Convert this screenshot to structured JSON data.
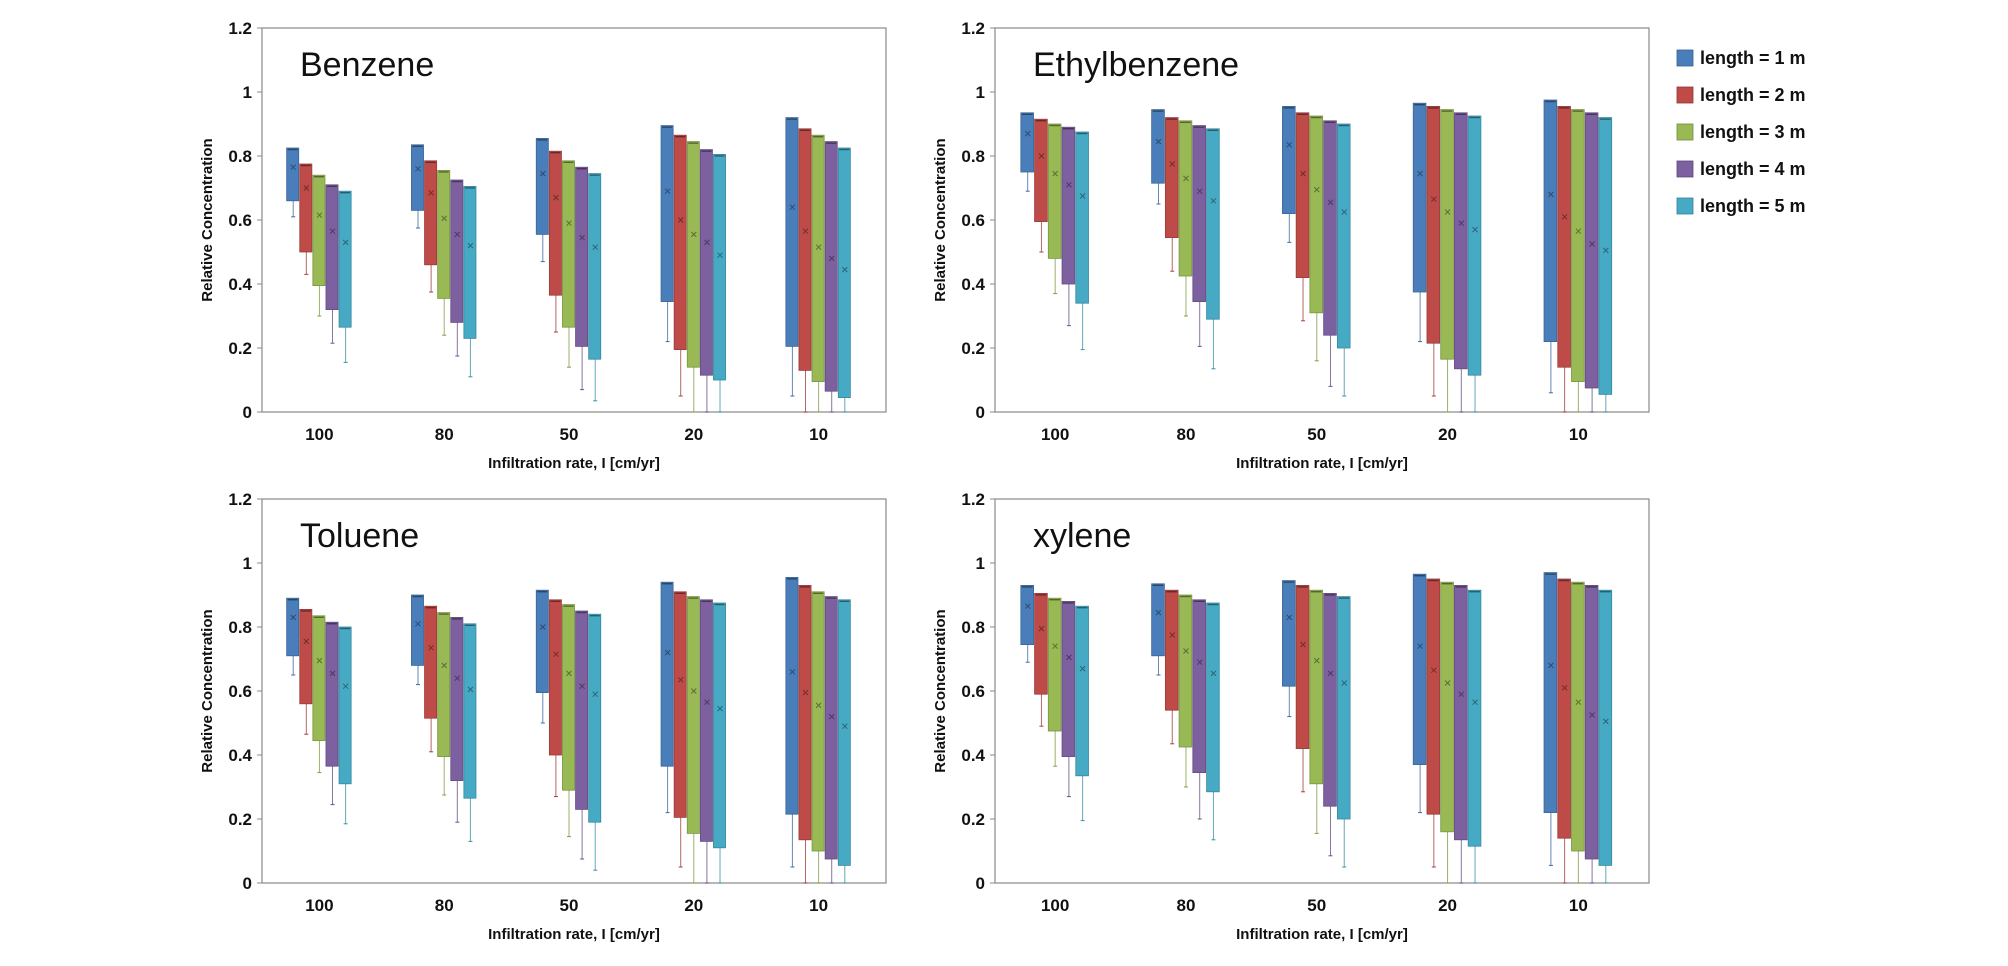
{
  "chart_data": [
    {
      "type": "box",
      "title": "Benzene",
      "xlabel": "Infiltration rate, I [cm/yr]",
      "ylabel": "Relative Concentration",
      "ylim": [
        0,
        1.2
      ],
      "yticks": [
        "0",
        "0.2",
        "0.4",
        "0.6",
        "0.8",
        "1",
        "1.2"
      ],
      "categories": [
        "100",
        "80",
        "50",
        "20",
        "10"
      ],
      "series": [
        {
          "name": "length = 1 m",
          "boxes": [
            [
              0.66,
              0.825,
              0.765,
              0.61
            ],
            [
              0.63,
              0.835,
              0.76,
              0.575
            ],
            [
              0.555,
              0.855,
              0.745,
              0.47
            ],
            [
              0.345,
              0.895,
              0.69,
              0.22
            ],
            [
              0.205,
              0.92,
              0.64,
              0.05
            ]
          ]
        },
        {
          "name": "length = 2 m",
          "boxes": [
            [
              0.5,
              0.775,
              0.7,
              0.43
            ],
            [
              0.46,
              0.785,
              0.685,
              0.375
            ],
            [
              0.365,
              0.815,
              0.67,
              0.25
            ],
            [
              0.195,
              0.865,
              0.6,
              0.05
            ],
            [
              0.13,
              0.885,
              0.565,
              0.0
            ]
          ]
        },
        {
          "name": "length = 3 m",
          "boxes": [
            [
              0.395,
              0.74,
              0.615,
              0.3
            ],
            [
              0.355,
              0.755,
              0.605,
              0.24
            ],
            [
              0.265,
              0.785,
              0.59,
              0.14
            ],
            [
              0.14,
              0.845,
              0.555,
              0.0
            ],
            [
              0.095,
              0.865,
              0.515,
              0.0
            ]
          ]
        },
        {
          "name": "length = 4 m",
          "boxes": [
            [
              0.32,
              0.71,
              0.565,
              0.215
            ],
            [
              0.28,
              0.725,
              0.555,
              0.175
            ],
            [
              0.205,
              0.765,
              0.545,
              0.07
            ],
            [
              0.115,
              0.82,
              0.53,
              0.0
            ],
            [
              0.065,
              0.845,
              0.48,
              0.0
            ]
          ]
        },
        {
          "name": "length = 5 m",
          "boxes": [
            [
              0.265,
              0.69,
              0.53,
              0.155
            ],
            [
              0.23,
              0.705,
              0.52,
              0.11
            ],
            [
              0.165,
              0.745,
              0.515,
              0.035
            ],
            [
              0.1,
              0.805,
              0.49,
              0.0
            ],
            [
              0.045,
              0.825,
              0.445,
              0.0
            ]
          ]
        }
      ]
    },
    {
      "type": "box",
      "title": "Ethylbenzene",
      "xlabel": "Infiltration rate, I [cm/yr]",
      "ylabel": "Relative Concentration",
      "ylim": [
        0,
        1.2
      ],
      "yticks": [
        "0",
        "0.2",
        "0.4",
        "0.6",
        "0.8",
        "1",
        "1.2"
      ],
      "categories": [
        "100",
        "80",
        "50",
        "20",
        "10"
      ],
      "series": [
        {
          "name": "length = 1 m",
          "boxes": [
            [
              0.75,
              0.935,
              0.87,
              0.69
            ],
            [
              0.715,
              0.945,
              0.845,
              0.65
            ],
            [
              0.62,
              0.955,
              0.835,
              0.53
            ],
            [
              0.375,
              0.965,
              0.745,
              0.22
            ],
            [
              0.22,
              0.975,
              0.68,
              0.06
            ]
          ]
        },
        {
          "name": "length = 2 m",
          "boxes": [
            [
              0.595,
              0.915,
              0.8,
              0.5
            ],
            [
              0.545,
              0.92,
              0.775,
              0.44
            ],
            [
              0.42,
              0.935,
              0.745,
              0.285
            ],
            [
              0.215,
              0.955,
              0.665,
              0.05
            ],
            [
              0.14,
              0.955,
              0.61,
              0.0
            ]
          ]
        },
        {
          "name": "length = 3 m",
          "boxes": [
            [
              0.48,
              0.9,
              0.745,
              0.37
            ],
            [
              0.425,
              0.91,
              0.73,
              0.3
            ],
            [
              0.31,
              0.925,
              0.695,
              0.16
            ],
            [
              0.165,
              0.945,
              0.625,
              0.0
            ],
            [
              0.095,
              0.945,
              0.565,
              0.0
            ]
          ]
        },
        {
          "name": "length = 4 m",
          "boxes": [
            [
              0.4,
              0.89,
              0.71,
              0.27
            ],
            [
              0.345,
              0.895,
              0.69,
              0.205
            ],
            [
              0.24,
              0.91,
              0.655,
              0.08
            ],
            [
              0.135,
              0.935,
              0.59,
              0.0
            ],
            [
              0.075,
              0.935,
              0.525,
              0.0
            ]
          ]
        },
        {
          "name": "length = 5 m",
          "boxes": [
            [
              0.34,
              0.875,
              0.675,
              0.195
            ],
            [
              0.29,
              0.885,
              0.66,
              0.135
            ],
            [
              0.2,
              0.9,
              0.625,
              0.05
            ],
            [
              0.115,
              0.925,
              0.57,
              0.0
            ],
            [
              0.055,
              0.92,
              0.505,
              0.0
            ]
          ]
        }
      ]
    },
    {
      "type": "box",
      "title": "Toluene",
      "xlabel": "Infiltration rate, I [cm/yr]",
      "ylabel": "Relative Concentration",
      "ylim": [
        0,
        1.2
      ],
      "yticks": [
        "0",
        "0.2",
        "0.4",
        "0.6",
        "0.8",
        "1",
        "1.2"
      ],
      "categories": [
        "100",
        "80",
        "50",
        "20",
        "10"
      ],
      "series": [
        {
          "name": "length = 1 m",
          "boxes": [
            [
              0.71,
              0.89,
              0.83,
              0.65
            ],
            [
              0.68,
              0.9,
              0.81,
              0.62
            ],
            [
              0.595,
              0.915,
              0.8,
              0.5
            ],
            [
              0.365,
              0.94,
              0.72,
              0.22
            ],
            [
              0.215,
              0.955,
              0.66,
              0.05
            ]
          ]
        },
        {
          "name": "length = 2 m",
          "boxes": [
            [
              0.56,
              0.855,
              0.755,
              0.465
            ],
            [
              0.515,
              0.865,
              0.735,
              0.41
            ],
            [
              0.4,
              0.885,
              0.715,
              0.27
            ],
            [
              0.205,
              0.91,
              0.635,
              0.05
            ],
            [
              0.135,
              0.93,
              0.595,
              0.0
            ]
          ]
        },
        {
          "name": "length = 3 m",
          "boxes": [
            [
              0.445,
              0.835,
              0.695,
              0.345
            ],
            [
              0.395,
              0.845,
              0.68,
              0.275
            ],
            [
              0.29,
              0.87,
              0.655,
              0.145
            ],
            [
              0.155,
              0.895,
              0.6,
              0.0
            ],
            [
              0.1,
              0.91,
              0.555,
              0.0
            ]
          ]
        },
        {
          "name": "length = 4 m",
          "boxes": [
            [
              0.365,
              0.815,
              0.655,
              0.245
            ],
            [
              0.32,
              0.83,
              0.64,
              0.19
            ],
            [
              0.23,
              0.85,
              0.615,
              0.075
            ],
            [
              0.13,
              0.885,
              0.565,
              0.0
            ],
            [
              0.075,
              0.895,
              0.52,
              0.0
            ]
          ]
        },
        {
          "name": "length = 5 m",
          "boxes": [
            [
              0.31,
              0.8,
              0.615,
              0.185
            ],
            [
              0.265,
              0.81,
              0.605,
              0.13
            ],
            [
              0.19,
              0.84,
              0.59,
              0.04
            ],
            [
              0.11,
              0.875,
              0.545,
              0.0
            ],
            [
              0.055,
              0.885,
              0.49,
              0.0
            ]
          ]
        }
      ]
    },
    {
      "type": "box",
      "title": "xylene",
      "xlabel": "Infiltration rate, I [cm/yr]",
      "ylabel": "Relative Concentration",
      "ylim": [
        0,
        1.2
      ],
      "yticks": [
        "0",
        "0.2",
        "0.4",
        "0.6",
        "0.8",
        "1",
        "1.2"
      ],
      "categories": [
        "100",
        "80",
        "50",
        "20",
        "10"
      ],
      "series": [
        {
          "name": "length = 1 m",
          "boxes": [
            [
              0.745,
              0.93,
              0.865,
              0.69
            ],
            [
              0.71,
              0.935,
              0.845,
              0.65
            ],
            [
              0.615,
              0.945,
              0.83,
              0.52
            ],
            [
              0.37,
              0.965,
              0.74,
              0.22
            ],
            [
              0.22,
              0.97,
              0.68,
              0.055
            ]
          ]
        },
        {
          "name": "length = 2 m",
          "boxes": [
            [
              0.59,
              0.905,
              0.795,
              0.49
            ],
            [
              0.54,
              0.915,
              0.775,
              0.435
            ],
            [
              0.42,
              0.93,
              0.745,
              0.285
            ],
            [
              0.215,
              0.95,
              0.665,
              0.05
            ],
            [
              0.14,
              0.95,
              0.61,
              0.0
            ]
          ]
        },
        {
          "name": "length = 3 m",
          "boxes": [
            [
              0.475,
              0.89,
              0.74,
              0.365
            ],
            [
              0.425,
              0.9,
              0.725,
              0.3
            ],
            [
              0.31,
              0.915,
              0.695,
              0.155
            ],
            [
              0.16,
              0.94,
              0.625,
              0.0
            ],
            [
              0.1,
              0.94,
              0.565,
              0.0
            ]
          ]
        },
        {
          "name": "length = 4 m",
          "boxes": [
            [
              0.395,
              0.88,
              0.705,
              0.27
            ],
            [
              0.345,
              0.885,
              0.69,
              0.2
            ],
            [
              0.24,
              0.905,
              0.655,
              0.085
            ],
            [
              0.135,
              0.93,
              0.59,
              0.0
            ],
            [
              0.075,
              0.93,
              0.525,
              0.0
            ]
          ]
        },
        {
          "name": "length = 5 m",
          "boxes": [
            [
              0.335,
              0.865,
              0.67,
              0.195
            ],
            [
              0.285,
              0.875,
              0.655,
              0.135
            ],
            [
              0.2,
              0.895,
              0.625,
              0.05
            ],
            [
              0.115,
              0.915,
              0.565,
              0.0
            ],
            [
              0.055,
              0.915,
              0.505,
              0.0
            ]
          ]
        }
      ]
    }
  ],
  "legend": {
    "position": "right",
    "items": [
      {
        "label": "length = 1 m",
        "color": "#4a7ebb"
      },
      {
        "label": "length = 2 m",
        "color": "#be4b48"
      },
      {
        "label": "length = 3 m",
        "color": "#98b954"
      },
      {
        "label": "length = 4 m",
        "color": "#7d60a0"
      },
      {
        "label": "length = 5 m",
        "color": "#46aac5"
      }
    ]
  },
  "styles": {
    "series_colors": [
      "#4a7ebb",
      "#be4b48",
      "#98b954",
      "#7d60a0",
      "#46aac5"
    ],
    "axis_color": "#888888"
  }
}
